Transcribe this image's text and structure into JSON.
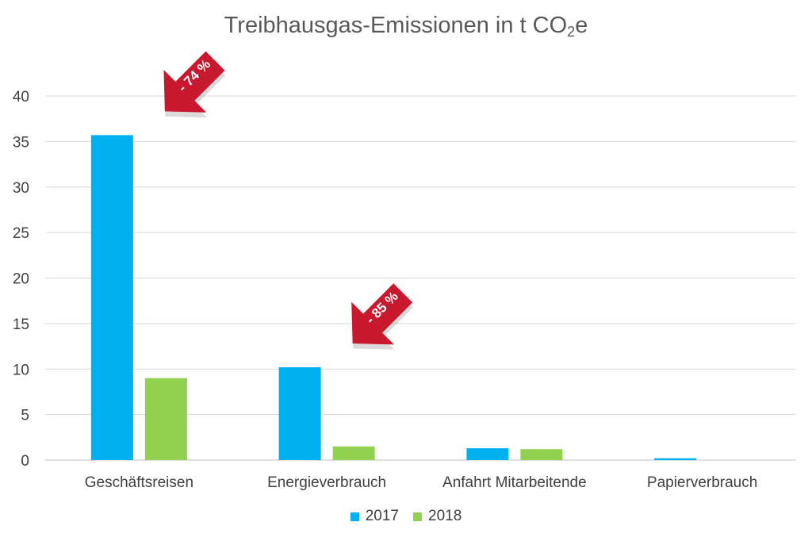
{
  "chart_data": {
    "type": "bar",
    "title_main": "Treibhausgas-Emissionen in t CO",
    "title_sub": "2",
    "title_suffix": "e",
    "categories": [
      "Geschäftsreisen",
      "Energieverbrauch",
      "Anfahrt Mitarbeitende",
      "Papierverbrauch"
    ],
    "series": [
      {
        "name": "2017",
        "color": "#00B0F0",
        "values": [
          35.7,
          10.2,
          1.3,
          0.2
        ]
      },
      {
        "name": "2018",
        "color": "#92D050",
        "values": [
          9.0,
          1.5,
          1.2,
          0.0
        ]
      }
    ],
    "ylim": [
      0,
      40
    ],
    "yticks": [
      0,
      5,
      10,
      15,
      20,
      25,
      30,
      35,
      40
    ],
    "grid": true,
    "legend_position": "bottom",
    "annotations": [
      {
        "label": "- 74 %",
        "category": "Geschäftsreisen",
        "color": "#C9192E"
      },
      {
        "label": "- 85 %",
        "category": "Energieverbrauch",
        "color": "#C9192E"
      }
    ]
  }
}
